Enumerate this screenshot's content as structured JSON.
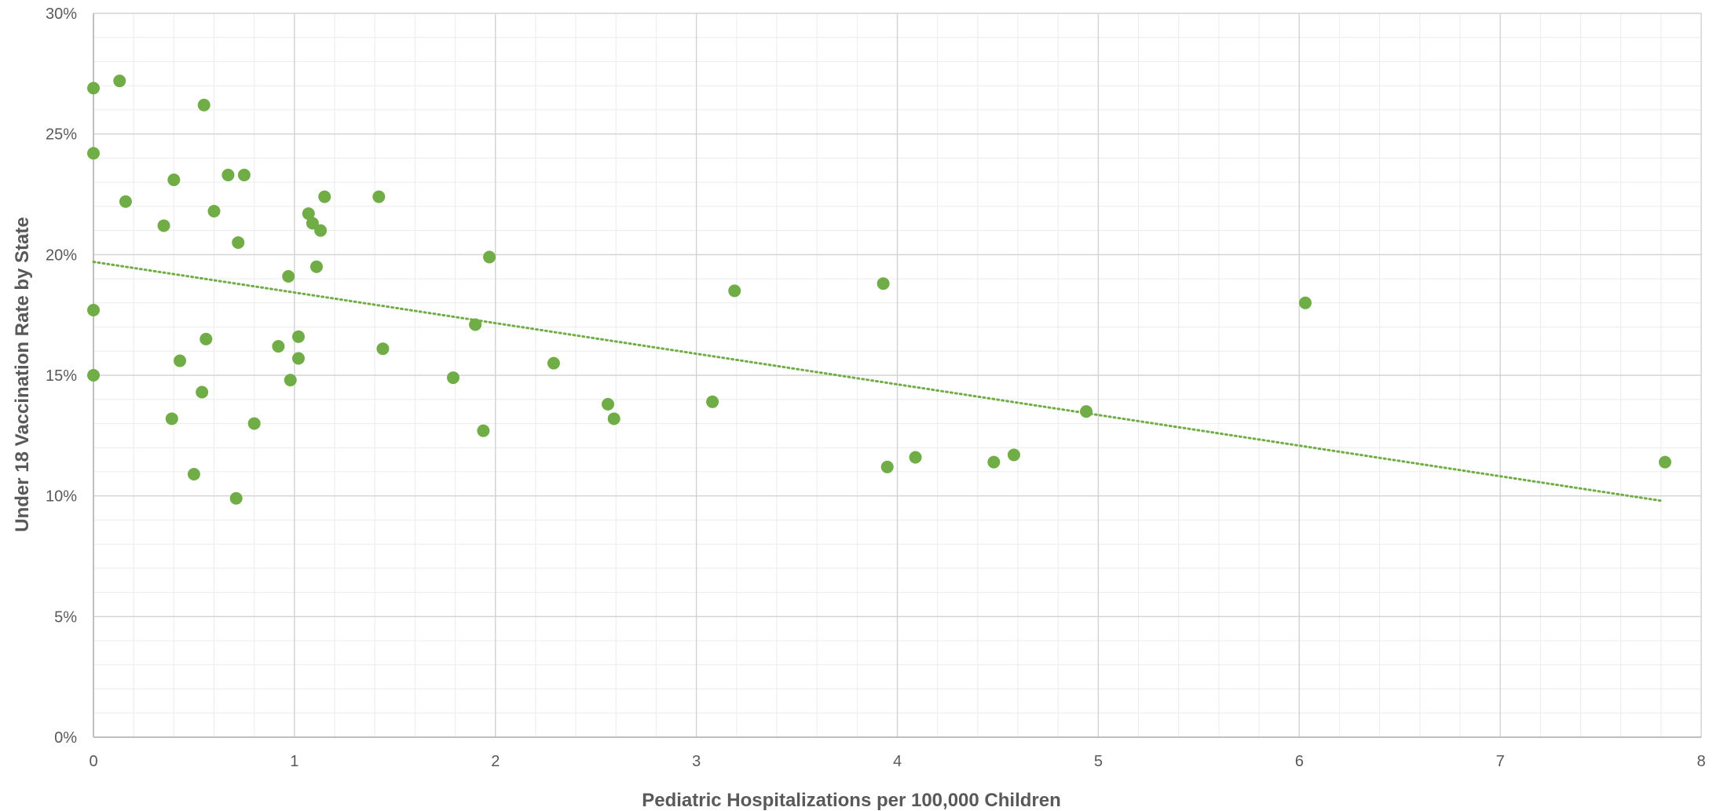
{
  "chart_data": {
    "type": "scatter",
    "xlabel": "Pediatric Hospitalizations per 100,000 Children",
    "ylabel": "Under 18 Vaccination Rate by State",
    "xlim": [
      0,
      8
    ],
    "ylim": [
      0,
      30
    ],
    "x_ticks": [
      0,
      1,
      2,
      3,
      4,
      5,
      6,
      7,
      8
    ],
    "x_tick_labels": [
      "0",
      "1",
      "2",
      "3",
      "4",
      "5",
      "6",
      "7",
      "8"
    ],
    "y_ticks": [
      0,
      5,
      10,
      15,
      20,
      25,
      30
    ],
    "y_tick_labels": [
      "0%",
      "5%",
      "10%",
      "15%",
      "20%",
      "25%",
      "30%"
    ],
    "y_unit": "%",
    "grid": true,
    "legend": "none",
    "marker_color": "#70ad47",
    "trendline": {
      "type": "linear",
      "style": "dotted",
      "color": "#70ad47",
      "x": [
        0,
        7.8
      ],
      "y": [
        19.7,
        9.8
      ]
    },
    "series": [
      {
        "points": [
          [
            0,
            26.9
          ],
          [
            0.13,
            27.2
          ],
          [
            0.55,
            26.2
          ],
          [
            0,
            24.2
          ],
          [
            0.4,
            23.1
          ],
          [
            0.67,
            23.3
          ],
          [
            0.75,
            23.3
          ],
          [
            0.16,
            22.2
          ],
          [
            1.15,
            22.4
          ],
          [
            1.42,
            22.4
          ],
          [
            0.6,
            21.8
          ],
          [
            1.07,
            21.7
          ],
          [
            1.09,
            21.3
          ],
          [
            0.35,
            21.2
          ],
          [
            1.13,
            21.0
          ],
          [
            0.72,
            20.5
          ],
          [
            1.97,
            19.9
          ],
          [
            1.11,
            19.5
          ],
          [
            0.97,
            19.1
          ],
          [
            3.19,
            18.5
          ],
          [
            3.93,
            18.8
          ],
          [
            6.03,
            18.0
          ],
          [
            0,
            17.7
          ],
          [
            1.9,
            17.1
          ],
          [
            0.56,
            16.5
          ],
          [
            1.02,
            16.6
          ],
          [
            0.92,
            16.2
          ],
          [
            1.44,
            16.1
          ],
          [
            0.43,
            15.6
          ],
          [
            1.02,
            15.7
          ],
          [
            2.29,
            15.5
          ],
          [
            0,
            15.0
          ],
          [
            0.98,
            14.8
          ],
          [
            1.79,
            14.9
          ],
          [
            0.54,
            14.3
          ],
          [
            3.08,
            13.9
          ],
          [
            2.56,
            13.8
          ],
          [
            4.94,
            13.5
          ],
          [
            0.39,
            13.2
          ],
          [
            2.59,
            13.2
          ],
          [
            0.8,
            13.0
          ],
          [
            1.94,
            12.7
          ],
          [
            4.58,
            11.7
          ],
          [
            4.09,
            11.6
          ],
          [
            4.48,
            11.4
          ],
          [
            7.82,
            11.4
          ],
          [
            3.95,
            11.2
          ],
          [
            0.5,
            10.9
          ],
          [
            0.71,
            9.9
          ]
        ]
      }
    ]
  }
}
